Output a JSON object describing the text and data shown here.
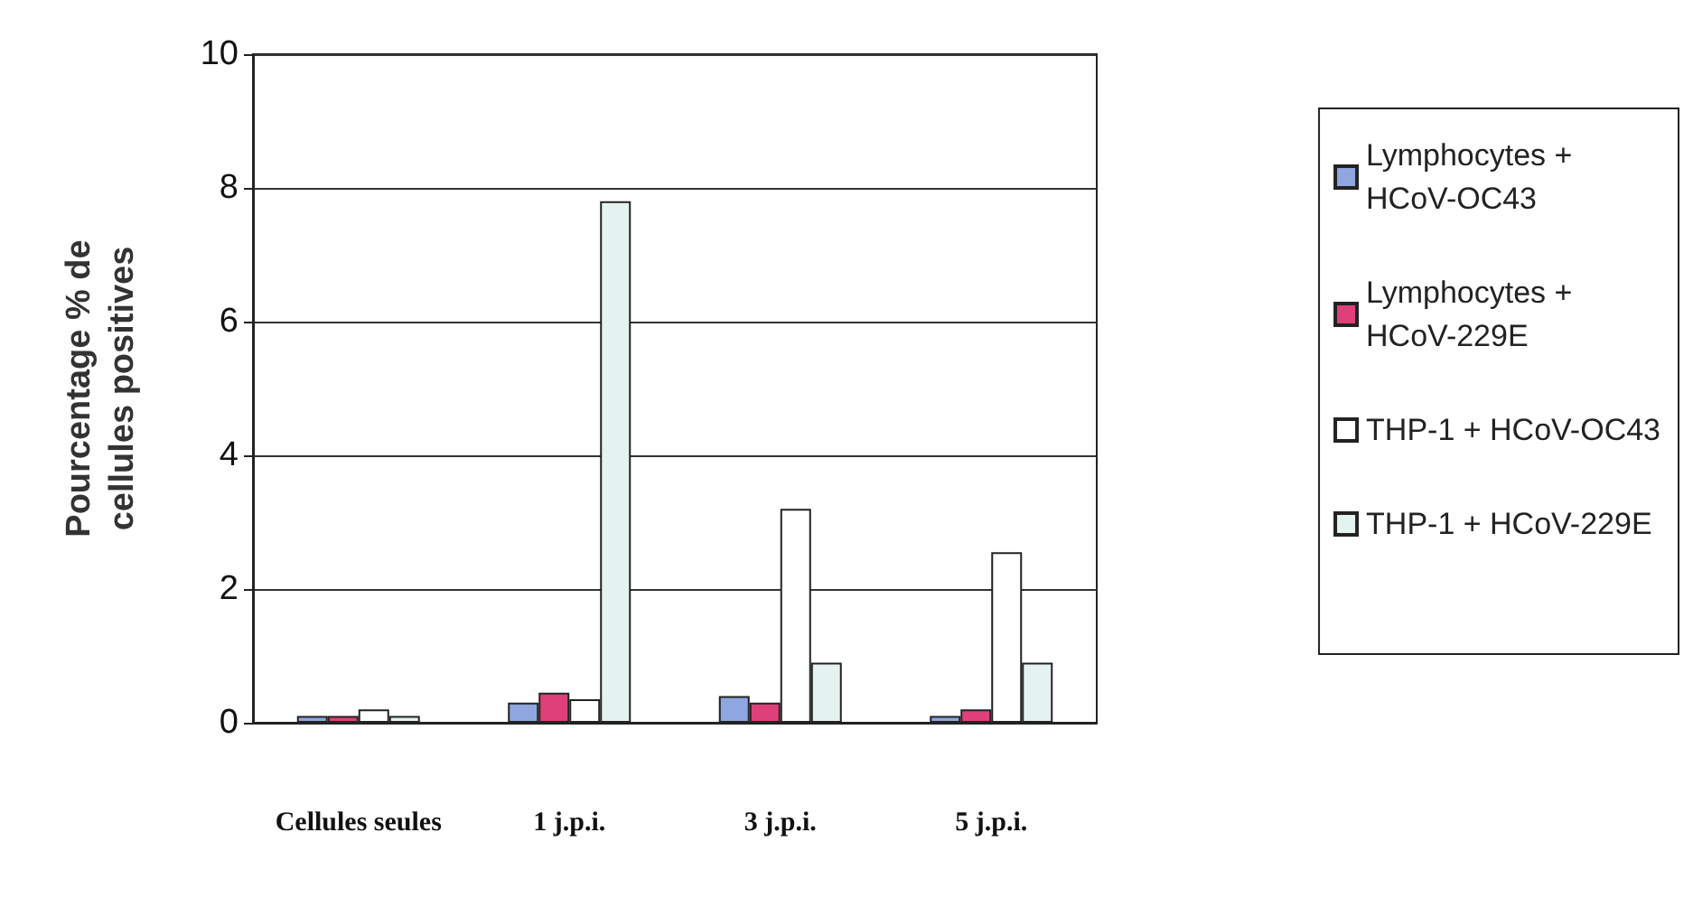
{
  "chart_data": {
    "type": "bar",
    "ylabel": "Pourcentage % de cellules positives",
    "categories": [
      "Cellules seules",
      "1 j.p.i.",
      "3 j.p.i.",
      "5 j.p.i."
    ],
    "series": [
      {
        "name": "Lymphocytes + HCoV-OC43",
        "color": "#8fa6e0",
        "values": [
          0.1,
          0.3,
          0.4,
          0.1
        ]
      },
      {
        "name": "Lymphocytes + HCoV-229E",
        "color": "#e0407a",
        "values": [
          0.1,
          0.45,
          0.3,
          0.2
        ]
      },
      {
        "name": "THP-1 + HCoV-OC43",
        "color": "#ffffff",
        "values": [
          0.2,
          0.35,
          3.2,
          2.55
        ]
      },
      {
        "name": "THP-1 + HCoV-229E",
        "color": "#e4f2f0",
        "values": [
          0.1,
          7.8,
          0.9,
          0.9
        ]
      }
    ],
    "ylim": [
      0,
      10
    ],
    "yticks": [
      0,
      2,
      4,
      6,
      8,
      10
    ],
    "grid": "y",
    "legend": "right"
  }
}
